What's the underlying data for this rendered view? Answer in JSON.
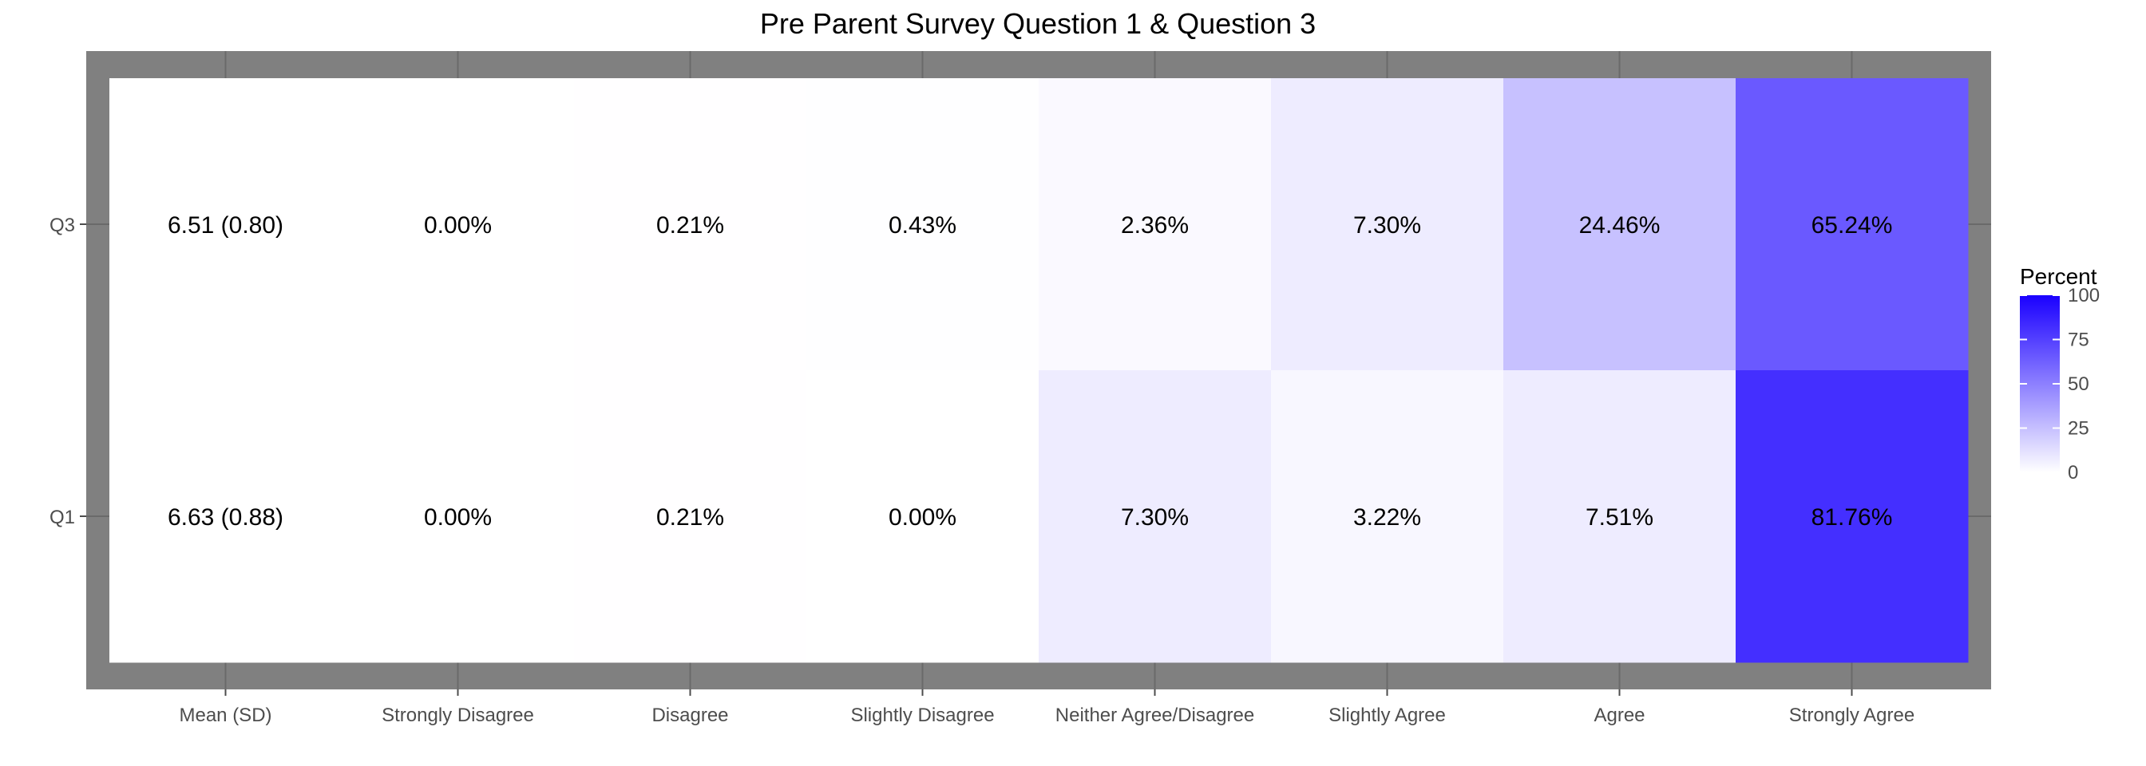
{
  "chart_data": {
    "type": "heatmap",
    "title": "Pre Parent Survey Question 1 & Question 3",
    "xlabel": "",
    "ylabel": "",
    "x_categories": [
      "Mean (SD)",
      "Strongly Disagree",
      "Disagree",
      "Slightly Disagree",
      "Neither Agree/Disagree",
      "Slightly Agree",
      "Agree",
      "Strongly Agree"
    ],
    "y_categories": [
      "Q3",
      "Q1"
    ],
    "rows": [
      {
        "label": "Q3",
        "cells": [
          {
            "text": "6.51 (0.80)",
            "value": 0
          },
          {
            "text": "0.00%",
            "value": 0.0
          },
          {
            "text": "0.21%",
            "value": 0.21
          },
          {
            "text": "0.43%",
            "value": 0.43
          },
          {
            "text": "2.36%",
            "value": 2.36
          },
          {
            "text": "7.30%",
            "value": 7.3
          },
          {
            "text": "24.46%",
            "value": 24.46
          },
          {
            "text": "65.24%",
            "value": 65.24
          }
        ]
      },
      {
        "label": "Q1",
        "cells": [
          {
            "text": "6.63 (0.88)",
            "value": 0
          },
          {
            "text": "0.00%",
            "value": 0.0
          },
          {
            "text": "0.21%",
            "value": 0.21
          },
          {
            "text": "0.00%",
            "value": 0.0
          },
          {
            "text": "7.30%",
            "value": 7.3
          },
          {
            "text": "3.22%",
            "value": 3.22
          },
          {
            "text": "7.51%",
            "value": 7.51
          },
          {
            "text": "81.76%",
            "value": 81.76
          }
        ]
      }
    ],
    "legend": {
      "title": "Percent",
      "position": "right",
      "ticks": [
        0,
        25,
        50,
        75,
        100
      ],
      "range": [
        0,
        100
      ],
      "low_color": "#ffffff",
      "high_color": "#1a00ff"
    },
    "panel_background": "#808080",
    "grid": true
  }
}
